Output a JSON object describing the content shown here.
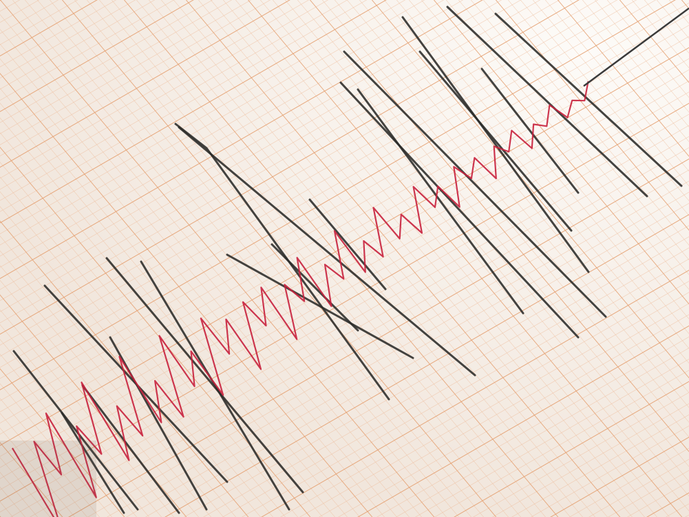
{
  "scene": {
    "subject": "seismograph-recording",
    "colors": {
      "paper": "#f7f1ea",
      "paper_highlight": "#fbf8f4",
      "grid_minor": "#eebb99",
      "grid_major": "#e39a68",
      "black_trace": "#2a2a28",
      "red_trace": "#c8203c",
      "stylus": "#3a3a3a"
    }
  }
}
